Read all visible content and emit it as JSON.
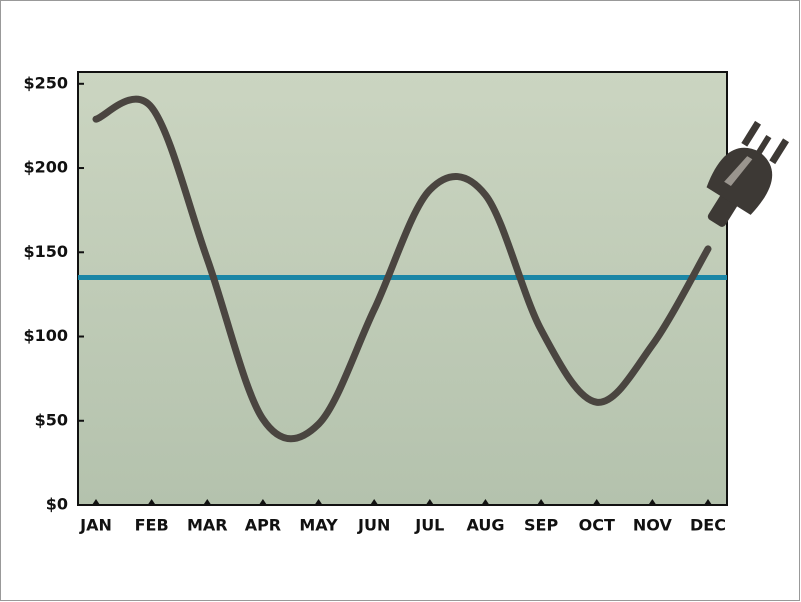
{
  "chart_data": {
    "type": "line",
    "categories": [
      "JAN",
      "FEB",
      "MAR",
      "APR",
      "MAY",
      "JUN",
      "JUL",
      "AUG",
      "SEP",
      "OCT",
      "NOV",
      "DEC"
    ],
    "series": [
      {
        "color": "#4a4540",
        "values": [
          229,
          236,
          146,
          51,
          48,
          116,
          187,
          184,
          104,
          61,
          95,
          152
        ]
      }
    ],
    "reference_line": {
      "value": 135,
      "color": "#1a86a6"
    },
    "ylim": [
      0,
      257
    ],
    "yticks": [
      {
        "value": 0,
        "label": "$0"
      },
      {
        "value": 50,
        "label": "$50"
      },
      {
        "value": 100,
        "label": "$100"
      },
      {
        "value": 150,
        "label": "$150"
      },
      {
        "value": 200,
        "label": "$200"
      },
      {
        "value": 250,
        "label": "$250"
      }
    ]
  }
}
